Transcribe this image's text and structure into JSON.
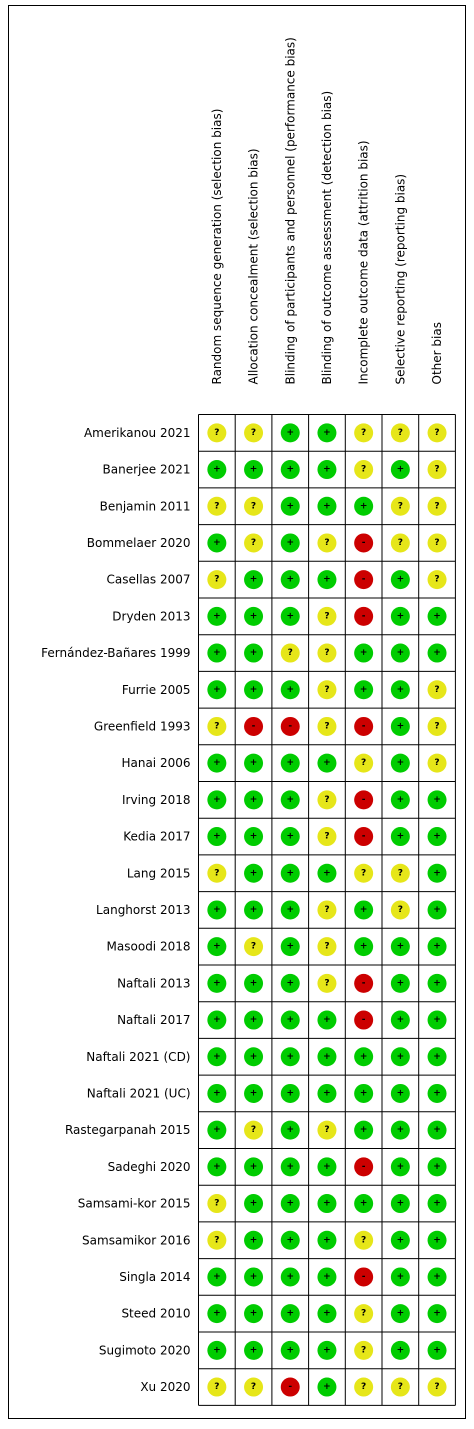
{
  "columns": [
    "Random sequence generation (selection bias)",
    "Allocation concealment (selection bias)",
    "Blinding of participants and personnel (performance bias)",
    "Blinding of outcome assessment (detection bias)",
    "Incomplete outcome data (attrition bias)",
    "Selective reporting (reporting bias)",
    "Other bias"
  ],
  "rows": [
    {
      "study": "Amerikanou 2021",
      "judgements": [
        "?",
        "?",
        "+",
        "+",
        "?",
        "?",
        "?"
      ]
    },
    {
      "study": "Banerjee 2021",
      "judgements": [
        "+",
        "+",
        "+",
        "+",
        "?",
        "+",
        "?"
      ]
    },
    {
      "study": "Benjamin 2011",
      "judgements": [
        "?",
        "?",
        "+",
        "+",
        "+",
        "?",
        "?"
      ]
    },
    {
      "study": "Bommelaer 2020",
      "judgements": [
        "+",
        "?",
        "+",
        "?",
        "-",
        "?",
        "?"
      ]
    },
    {
      "study": "Casellas 2007",
      "judgements": [
        "?",
        "+",
        "+",
        "+",
        "-",
        "+",
        "?"
      ]
    },
    {
      "study": "Dryden 2013",
      "judgements": [
        "+",
        "+",
        "+",
        "?",
        "-",
        "+",
        "+"
      ]
    },
    {
      "study": "Fernández-Bañares 1999",
      "judgements": [
        "+",
        "+",
        "?",
        "?",
        "+",
        "+",
        "+"
      ]
    },
    {
      "study": "Furrie 2005",
      "judgements": [
        "+",
        "+",
        "+",
        "?",
        "+",
        "+",
        "?"
      ]
    },
    {
      "study": "Greenfield 1993",
      "judgements": [
        "?",
        "-",
        "-",
        "?",
        "-",
        "+",
        "?"
      ]
    },
    {
      "study": "Hanai 2006",
      "judgements": [
        "+",
        "+",
        "+",
        "+",
        "?",
        "+",
        "?"
      ]
    },
    {
      "study": "Irving 2018",
      "judgements": [
        "+",
        "+",
        "+",
        "?",
        "-",
        "+",
        "+"
      ]
    },
    {
      "study": "Kedia 2017",
      "judgements": [
        "+",
        "+",
        "+",
        "?",
        "-",
        "+",
        "+"
      ]
    },
    {
      "study": "Lang 2015",
      "judgements": [
        "?",
        "+",
        "+",
        "+",
        "?",
        "?",
        "+"
      ]
    },
    {
      "study": "Langhorst 2013",
      "judgements": [
        "+",
        "+",
        "+",
        "?",
        "+",
        "?",
        "+"
      ]
    },
    {
      "study": "Masoodi 2018",
      "judgements": [
        "+",
        "?",
        "+",
        "?",
        "+",
        "+",
        "+"
      ]
    },
    {
      "study": "Naftali 2013",
      "judgements": [
        "+",
        "+",
        "+",
        "?",
        "-",
        "+",
        "+"
      ]
    },
    {
      "study": "Naftali 2017",
      "judgements": [
        "+",
        "+",
        "+",
        "+",
        "-",
        "+",
        "+"
      ]
    },
    {
      "study": "Naftali 2021 (CD)",
      "judgements": [
        "+",
        "+",
        "+",
        "+",
        "+",
        "+",
        "+"
      ]
    },
    {
      "study": "Naftali 2021 (UC)",
      "judgements": [
        "+",
        "+",
        "+",
        "+",
        "+",
        "+",
        "+"
      ]
    },
    {
      "study": "Rastegarpanah 2015",
      "judgements": [
        "+",
        "?",
        "+",
        "?",
        "+",
        "+",
        "+"
      ]
    },
    {
      "study": "Sadeghi 2020",
      "judgements": [
        "+",
        "+",
        "+",
        "+",
        "-",
        "+",
        "+"
      ]
    },
    {
      "study": "Samsami-kor 2015",
      "judgements": [
        "?",
        "+",
        "+",
        "+",
        "+",
        "+",
        "+"
      ]
    },
    {
      "study": "Samsamikor 2016",
      "judgements": [
        "?",
        "+",
        "+",
        "+",
        "?",
        "+",
        "+"
      ]
    },
    {
      "study": "Singla 2014",
      "judgements": [
        "+",
        "+",
        "+",
        "+",
        "-",
        "+",
        "+"
      ]
    },
    {
      "study": "Steed 2010",
      "judgements": [
        "+",
        "+",
        "+",
        "+",
        "?",
        "+",
        "+"
      ]
    },
    {
      "study": "Sugimoto 2020",
      "judgements": [
        "+",
        "+",
        "+",
        "+",
        "?",
        "+",
        "+"
      ]
    },
    {
      "study": "Xu 2020",
      "judgements": [
        "?",
        "?",
        "-",
        "+",
        "?",
        "?",
        "?"
      ]
    }
  ]
}
